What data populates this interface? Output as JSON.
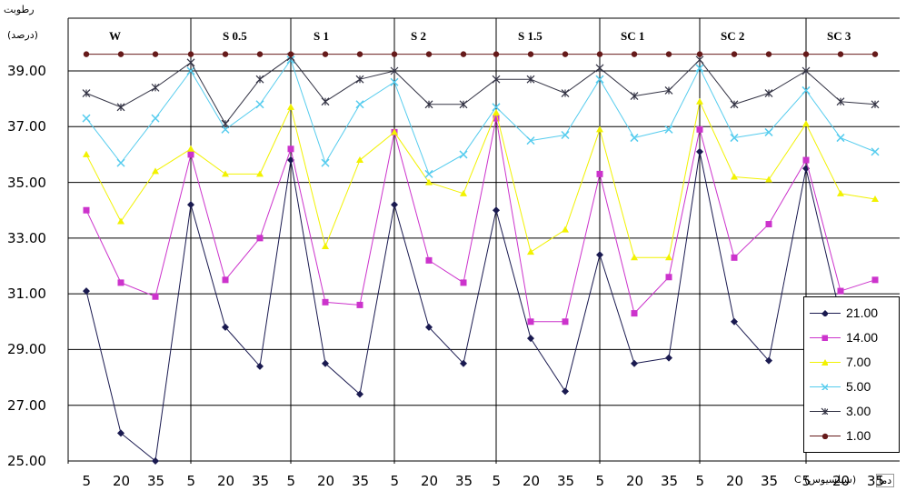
{
  "chart_data": {
    "type": "line",
    "ylabel": "رطوبت",
    "ylabel_unit": "(درصد)",
    "xlabel": "دما",
    "xlabel_unit": "C (سیلسیوس)",
    "ylim": [
      25,
      40
    ],
    "yticks": [
      "25.00",
      "27.00",
      "29.00",
      "31.00",
      "33.00",
      "35.00",
      "37.00",
      "39.00"
    ],
    "groups": [
      "W",
      "S 0.5",
      "S 1",
      "S 2",
      "S 1.5",
      "SC 1",
      "SC 2",
      "SC 3"
    ],
    "x": [
      "5",
      "20",
      "35"
    ],
    "series": [
      {
        "name": "21.00",
        "color": "#1a1a50",
        "marker": "diamond",
        "values": [
          [
            31.1,
            26.0,
            25.0
          ],
          [
            34.2,
            29.8,
            28.4
          ],
          [
            35.8,
            28.5,
            27.4
          ],
          [
            34.2,
            29.8,
            28.5
          ],
          [
            34.0,
            29.4,
            27.5
          ],
          [
            32.4,
            28.5,
            28.7
          ],
          [
            36.1,
            30.0,
            28.6
          ],
          [
            35.5,
            30.2,
            null
          ]
        ]
      },
      {
        "name": "14.00",
        "color": "#cc33cc",
        "marker": "square",
        "values": [
          [
            34.0,
            31.4,
            30.9
          ],
          [
            36.0,
            31.5,
            33.0
          ],
          [
            36.2,
            30.7,
            30.6
          ],
          [
            36.8,
            32.2,
            31.4
          ],
          [
            37.3,
            30.0,
            30.0
          ],
          [
            35.3,
            30.3,
            31.6
          ],
          [
            36.9,
            32.3,
            33.5
          ],
          [
            35.8,
            31.1,
            31.5
          ]
        ]
      },
      {
        "name": "7.00",
        "color": "#f2f200",
        "marker": "triangle",
        "values": [
          [
            36.0,
            33.6,
            35.4
          ],
          [
            36.2,
            35.3,
            35.3
          ],
          [
            37.7,
            32.7,
            35.8
          ],
          [
            36.8,
            35.0,
            34.6
          ],
          [
            37.5,
            32.5,
            33.3
          ],
          [
            36.9,
            32.3,
            32.3
          ],
          [
            37.9,
            35.2,
            35.1
          ],
          [
            37.1,
            34.6,
            34.4
          ]
        ]
      },
      {
        "name": "5.00",
        "color": "#55ccee",
        "marker": "x",
        "values": [
          [
            37.3,
            35.7,
            37.3
          ],
          [
            39.0,
            36.9,
            37.8
          ],
          [
            39.4,
            35.7,
            37.8
          ],
          [
            38.6,
            35.3,
            36.0
          ],
          [
            37.7,
            36.5,
            36.7
          ],
          [
            38.7,
            36.6,
            36.9
          ],
          [
            39.1,
            36.6,
            36.8
          ],
          [
            38.3,
            36.6,
            36.1
          ]
        ]
      },
      {
        "name": "3.00",
        "color": "#333344",
        "marker": "star",
        "values": [
          [
            38.2,
            37.7,
            38.4
          ],
          [
            39.3,
            37.1,
            38.7
          ],
          [
            39.5,
            37.9,
            38.7
          ],
          [
            39.0,
            37.8,
            37.8
          ],
          [
            38.7,
            38.7,
            38.2
          ],
          [
            39.1,
            38.1,
            38.3
          ],
          [
            39.4,
            37.8,
            38.2
          ],
          [
            39.0,
            37.9,
            37.8
          ]
        ]
      },
      {
        "name": "1.00",
        "color": "#661a1a",
        "marker": "circle",
        "values": [
          [
            39.6,
            39.6,
            39.6
          ],
          [
            39.6,
            39.6,
            39.6
          ],
          [
            39.6,
            39.6,
            39.6
          ],
          [
            39.6,
            39.6,
            39.6
          ],
          [
            39.6,
            39.6,
            39.6
          ],
          [
            39.6,
            39.6,
            39.6
          ],
          [
            39.6,
            39.6,
            39.6
          ],
          [
            39.6,
            39.6,
            39.6
          ]
        ]
      }
    ],
    "grid": "horizontal",
    "legend_position": "bottom-right"
  }
}
